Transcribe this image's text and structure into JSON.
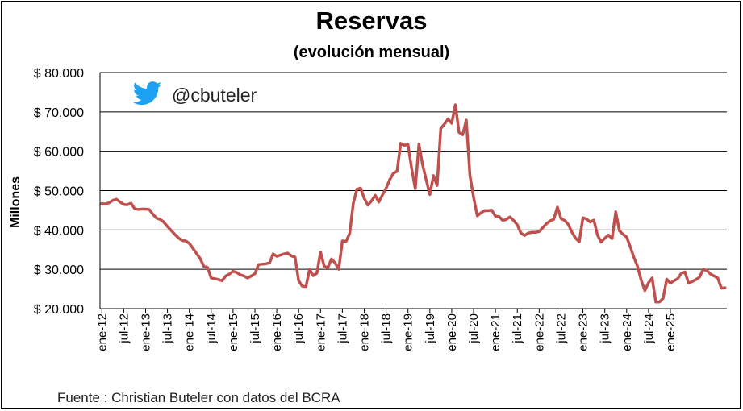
{
  "colors": {
    "line": "#c0504d",
    "axis": "#000000",
    "grid": "#000000",
    "twitter": "#1da1f2"
  },
  "handle": {
    "icon": "twitter-bird-icon",
    "text": "@cbuteler"
  },
  "source_note": "Fuente : Christian Buteler con datos del BCRA",
  "chart_data": {
    "type": "line",
    "title": "Reservas",
    "subtitle": "(evolución mensual)",
    "xlabel": "",
    "ylabel": "Millones",
    "ylim": [
      20000,
      80000
    ],
    "grid": true,
    "y_ticks": [
      20000,
      30000,
      40000,
      50000,
      60000,
      70000,
      80000
    ],
    "y_tick_labels": [
      "$ 20.000",
      "$ 30.000",
      "$ 40.000",
      "$ 50.000",
      "$ 60.000",
      "$ 70.000",
      "$ 80.000"
    ],
    "x_tick_labels": [
      "ene-12",
      "jul-12",
      "ene-13",
      "jul-13",
      "ene-14",
      "jul-14",
      "ene-15",
      "jul-15",
      "ene-16",
      "jul-16",
      "ene-17",
      "jul-17",
      "ene-18",
      "jul-18",
      "ene-19",
      "jul-19",
      "ene-20",
      "jul-20",
      "ene-21",
      "jul-21",
      "ene-22",
      "jul-22",
      "ene-23",
      "jul-23",
      "ene-24",
      "jul-24",
      "ene-25"
    ],
    "start_period": "ene-12",
    "series": [
      {
        "name": "",
        "values": [
          46700,
          46600,
          46900,
          47500,
          47800,
          47100,
          46500,
          46400,
          46800,
          45400,
          45200,
          45300,
          45300,
          45200,
          44000,
          43000,
          42700,
          42000,
          40900,
          39900,
          38900,
          38000,
          37300,
          37200,
          36600,
          35300,
          34000,
          32700,
          30700,
          30500,
          27800,
          27600,
          27400,
          27100,
          28300,
          28800,
          29500,
          29200,
          28600,
          28300,
          27800,
          28300,
          28900,
          31200,
          31300,
          31400,
          31600,
          33900,
          33300,
          33600,
          33900,
          34100,
          33400,
          33100,
          27100,
          25700,
          25600,
          30000,
          28400,
          29000,
          34400,
          30800,
          30400,
          32600,
          31600,
          30000,
          37200,
          37100,
          39100,
          46800,
          50400,
          50600,
          48000,
          46300,
          47400,
          48800,
          47100,
          48900,
          50600,
          52800,
          54400,
          54900,
          62000,
          61500,
          61700,
          55600,
          50500,
          61800,
          56600,
          52700,
          49000,
          53800,
          51300,
          65800,
          66900,
          68200,
          67100,
          71800,
          64800,
          64200,
          67900,
          53800,
          48300,
          43600,
          44300,
          44900,
          44900,
          45000,
          43500,
          43400,
          42400,
          42700,
          43300,
          42400,
          41300,
          39200,
          38600,
          39200,
          39400,
          39400,
          39600,
          40600,
          41600,
          42300,
          42700,
          45800,
          42900,
          42400,
          41400,
          39400,
          37900,
          37000,
          43100,
          42800,
          42000,
          42500,
          38700,
          36900,
          37900,
          38700,
          37800,
          44600,
          39800,
          38900,
          38200,
          35700,
          33000,
          30700,
          27200,
          24600,
          26600,
          27800,
          21700,
          21700,
          22600,
          27500,
          26500,
          27100,
          27600,
          29000,
          29300,
          26500,
          26900,
          27400,
          28000,
          30000,
          29700,
          28800,
          28300,
          27800,
          25200,
          25300
        ]
      }
    ]
  }
}
